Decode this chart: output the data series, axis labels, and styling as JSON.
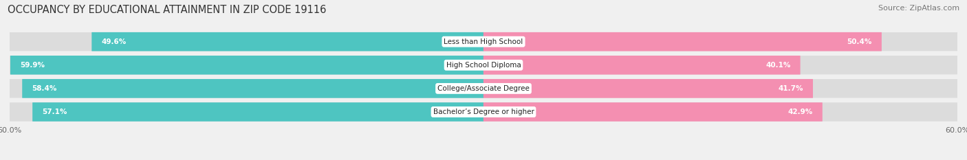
{
  "title": "OCCUPANCY BY EDUCATIONAL ATTAINMENT IN ZIP CODE 19116",
  "source": "Source: ZipAtlas.com",
  "categories": [
    "Less than High School",
    "High School Diploma",
    "College/Associate Degree",
    "Bachelor’s Degree or higher"
  ],
  "owner_values": [
    49.6,
    59.9,
    58.4,
    57.1
  ],
  "renter_values": [
    50.4,
    40.1,
    41.7,
    42.9
  ],
  "owner_color": "#4EC5C1",
  "renter_color": "#F48FB1",
  "bar_height": 0.78,
  "xlim": 60.0,
  "background_color": "#f0f0f0",
  "bar_background": "#dcdcdc",
  "row_bg": "#ffffff",
  "title_fontsize": 10.5,
  "source_fontsize": 8,
  "label_fontsize": 7.5,
  "value_fontsize": 7.5,
  "tick_fontsize": 8
}
